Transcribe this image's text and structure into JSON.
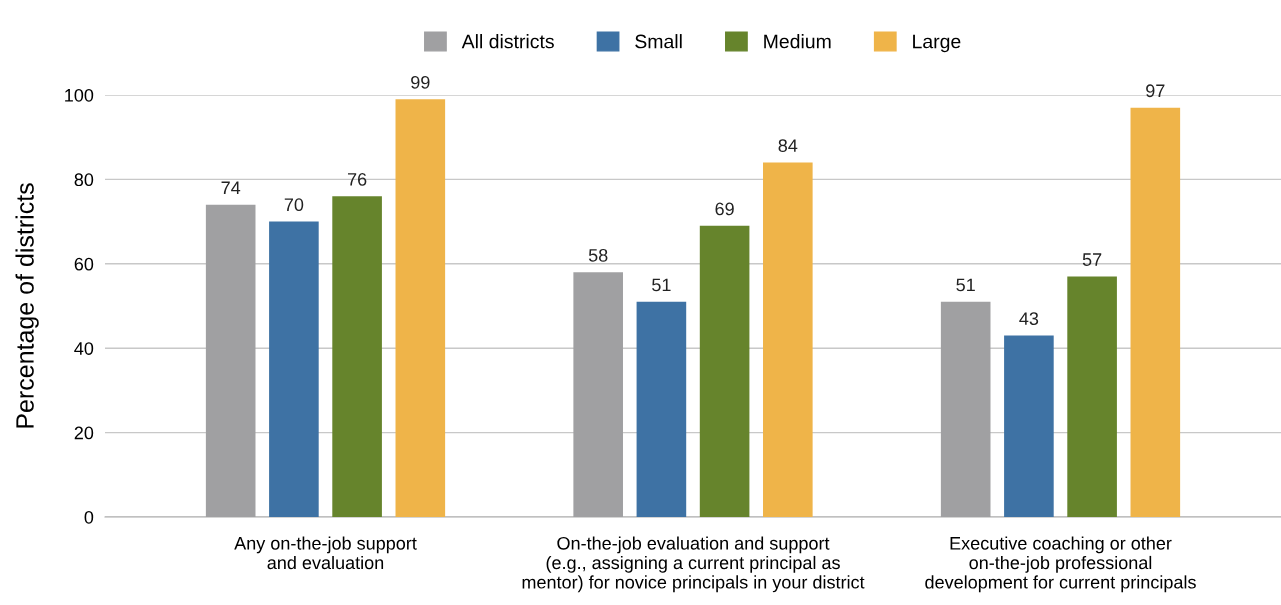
{
  "chart_data": {
    "type": "bar",
    "ylabel": "Percentage of districts",
    "categories": [
      "Any on-the-job support\nand evaluation",
      "On-the-job evaluation and support\n(e.g., assigning a current principal as\nmentor) for novice principals in your district",
      "Executive coaching or other\non-the-job professional\ndevelopment for current principals"
    ],
    "series": [
      {
        "name": "All districts",
        "color": "#a0a0a2",
        "values": [
          74,
          58,
          51
        ]
      },
      {
        "name": "Small",
        "color": "#3e72a4",
        "values": [
          70,
          51,
          43
        ]
      },
      {
        "name": "Medium",
        "color": "#66842c",
        "values": [
          76,
          69,
          57
        ]
      },
      {
        "name": "Large",
        "color": "#efb449",
        "values": [
          99,
          84,
          97
        ]
      }
    ],
    "ylim": [
      0,
      100
    ],
    "yticks": [
      0,
      20,
      40,
      60,
      80,
      100
    ],
    "grid": "y",
    "legend": "top",
    "data_labels": true
  }
}
